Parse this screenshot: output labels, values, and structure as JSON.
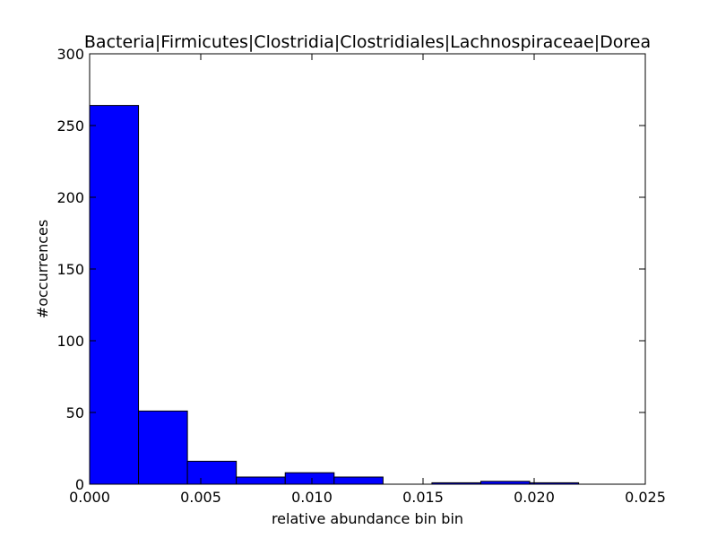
{
  "chart_data": {
    "type": "bar",
    "title": "Bacteria|Firmicutes|Clostridia|Clostridiales|Lachnospiraceae|Dorea",
    "xlabel": "relative abundance bin bin",
    "ylabel": "#occurrences",
    "xlim": [
      0.0,
      0.025
    ],
    "ylim": [
      0,
      300
    ],
    "bin_width": 0.0022,
    "bins": [
      {
        "x_start": 0.0,
        "value": 264
      },
      {
        "x_start": 0.0022,
        "value": 51
      },
      {
        "x_start": 0.0044,
        "value": 16
      },
      {
        "x_start": 0.0066,
        "value": 5
      },
      {
        "x_start": 0.0088,
        "value": 8
      },
      {
        "x_start": 0.011,
        "value": 5
      },
      {
        "x_start": 0.0132,
        "value": 0
      },
      {
        "x_start": 0.0154,
        "value": 1
      },
      {
        "x_start": 0.0176,
        "value": 2
      },
      {
        "x_start": 0.0198,
        "value": 1
      }
    ],
    "xticks": [
      "0.000",
      "0.005",
      "0.010",
      "0.015",
      "0.020",
      "0.025"
    ],
    "yticks": [
      "0",
      "50",
      "100",
      "150",
      "200",
      "250",
      "300"
    ],
    "grid": false,
    "bar_color": "#0000ff",
    "edge_color": "#000000"
  }
}
